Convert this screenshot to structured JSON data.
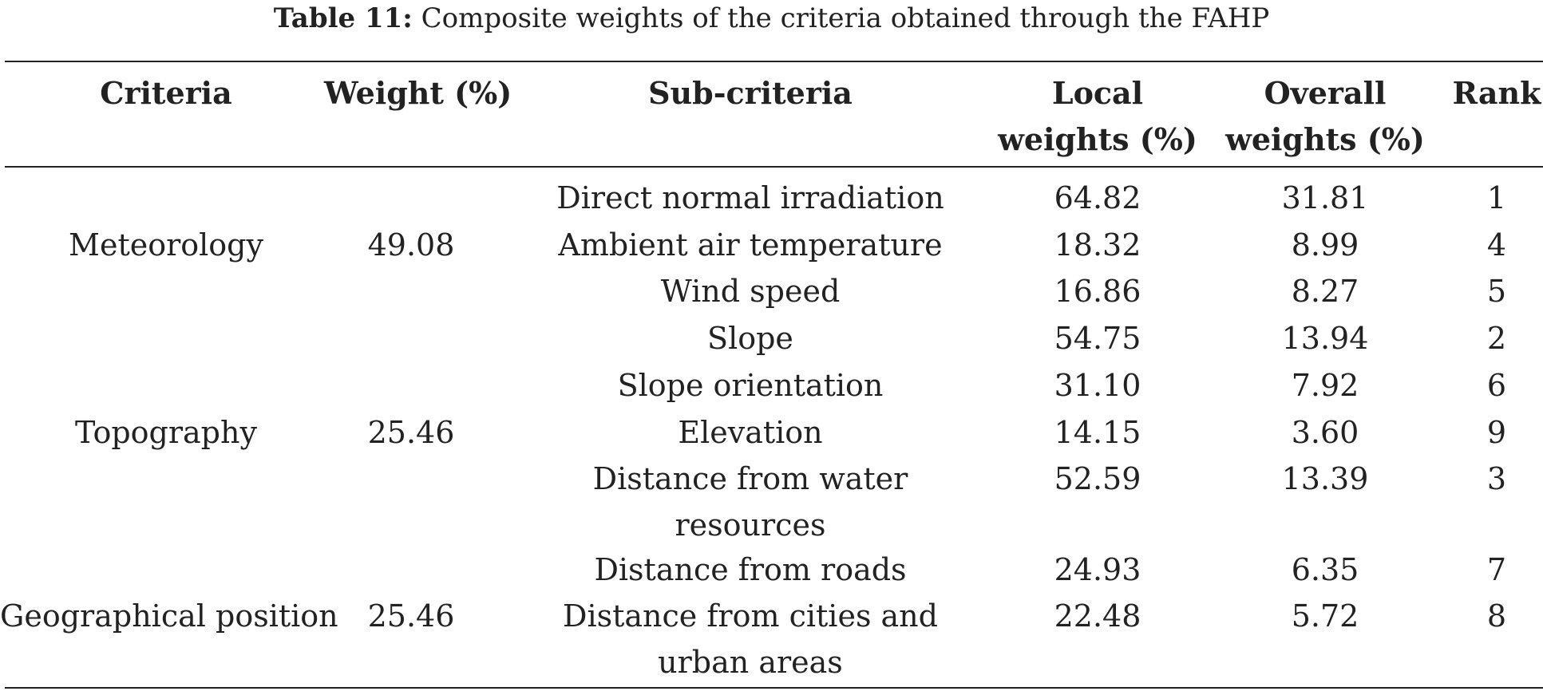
{
  "caption": {
    "label": "Table 11:",
    "text": "Composite weights of the criteria obtained through the FAHP"
  },
  "headers": {
    "criteria": "Criteria",
    "weight": "Weight (%)",
    "sub_criteria": "Sub-criteria",
    "local_1": "Local",
    "local_2": "weights (%)",
    "overall_1": "Overall",
    "overall_2": "weights (%)",
    "rank": "Rank"
  },
  "groups": [
    {
      "criteria": "Meteorology",
      "weight": "49.08"
    },
    {
      "criteria": "Topography",
      "weight": "25.46"
    },
    {
      "criteria": "Geographical position",
      "weight": "25.46"
    }
  ],
  "rows": [
    {
      "sub": "Direct normal irradiation",
      "local": "64.82",
      "overall": "31.81",
      "rank": "1"
    },
    {
      "sub": "Ambient air temperature",
      "local": "18.32",
      "overall": "8.99",
      "rank": "4"
    },
    {
      "sub": "Wind speed",
      "local": "16.86",
      "overall": "8.27",
      "rank": "5"
    },
    {
      "sub": "Slope",
      "local": "54.75",
      "overall": "13.94",
      "rank": "2"
    },
    {
      "sub": "Slope orientation",
      "local": "31.10",
      "overall": "7.92",
      "rank": "6"
    },
    {
      "sub": "Elevation",
      "local": "14.15",
      "overall": "3.60",
      "rank": "9"
    },
    {
      "sub": "Distance from water",
      "sub_2": "resources",
      "local": "52.59",
      "overall": "13.39",
      "rank": "3"
    },
    {
      "sub": "Distance from roads",
      "local": "24.93",
      "overall": "6.35",
      "rank": "7"
    },
    {
      "sub": "Distance from cities and",
      "sub_2": "urban areas",
      "local": "22.48",
      "overall": "5.72",
      "rank": "8"
    }
  ]
}
